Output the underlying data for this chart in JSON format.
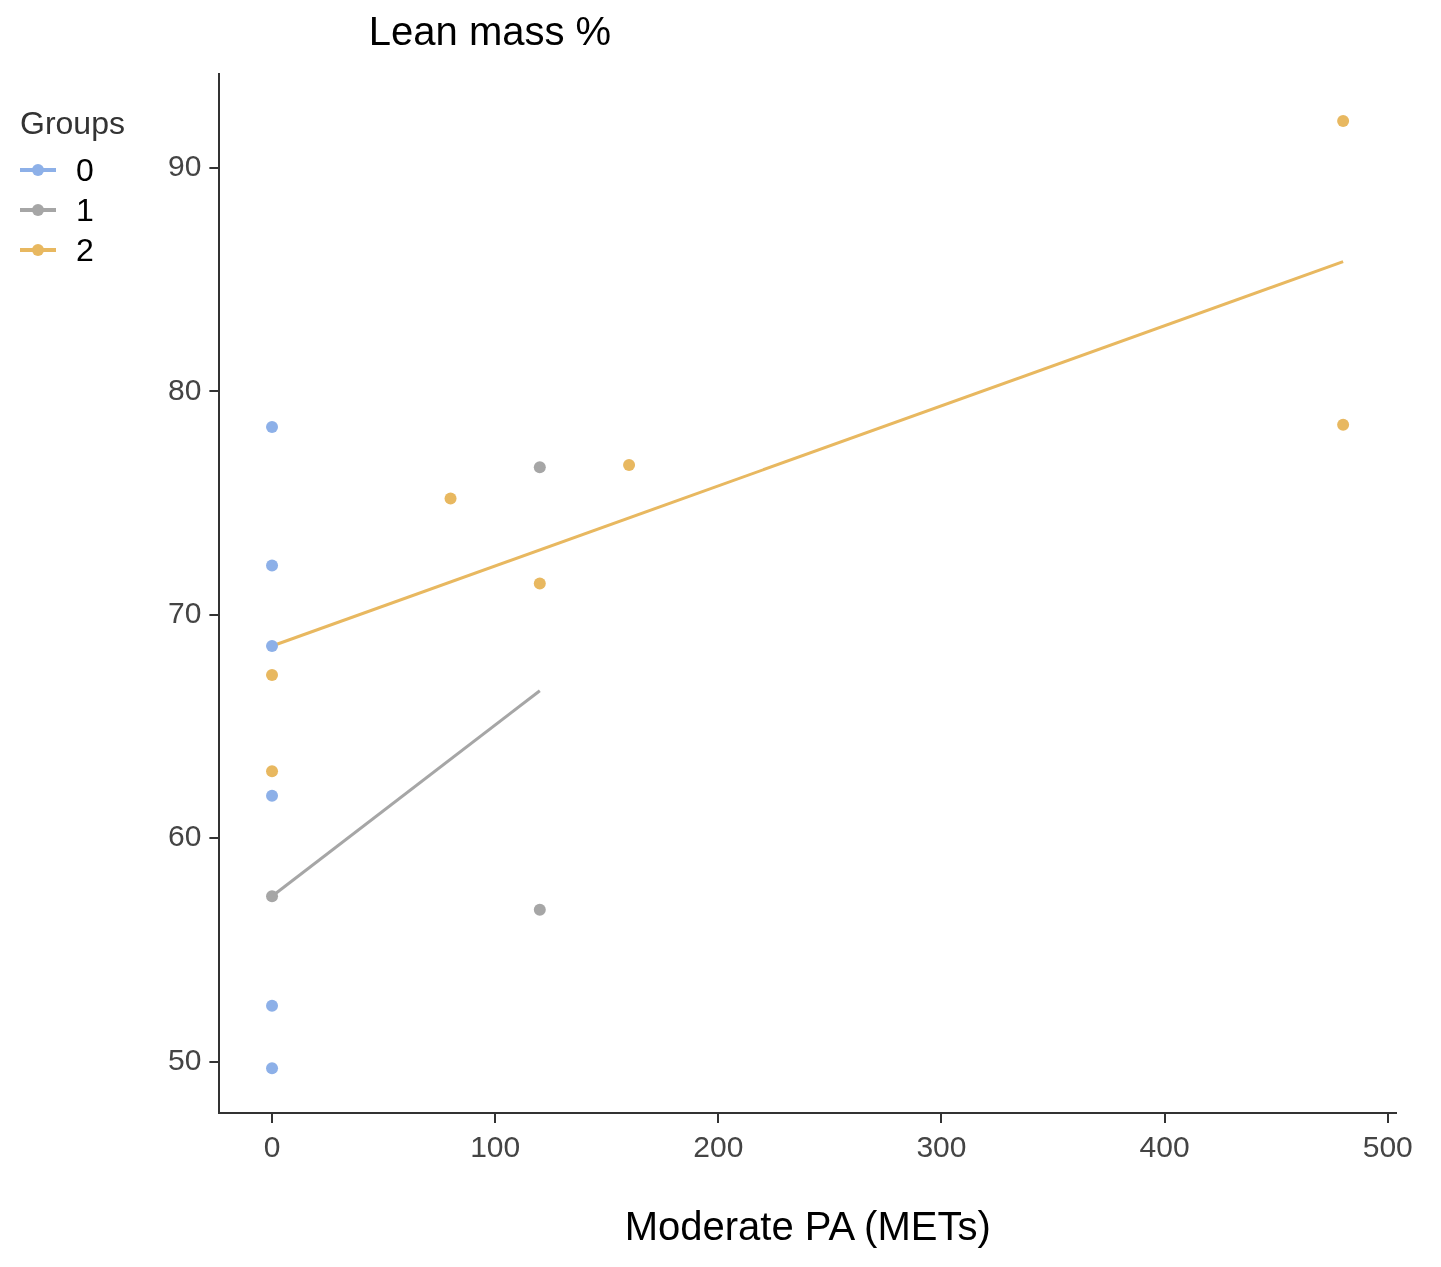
{
  "chart_data": {
    "type": "scatter",
    "title": "Lean mass %",
    "xlabel": "Moderate PA (METs)",
    "legend_title": "Groups",
    "legend": "top left",
    "grid": false,
    "marker": "circle",
    "xlim": [
      -23.6,
      503.7
    ],
    "xticks": [
      0,
      100,
      200,
      300,
      400,
      500
    ],
    "ylim": [
      47.7,
      94.2
    ],
    "yticks": [
      50,
      60,
      70,
      80,
      90
    ],
    "series": [
      {
        "name": "0",
        "color": "#8db0e8",
        "x": [
          0,
          0,
          0,
          0,
          0,
          0
        ],
        "values": [
          78.4,
          72.2,
          68.6,
          61.9,
          52.5,
          49.7
        ]
      },
      {
        "name": "1",
        "color": "#a6a6a6",
        "x": [
          0,
          120,
          120
        ],
        "values": [
          57.4,
          76.6,
          56.8
        ]
      },
      {
        "name": "2",
        "color": "#e8b860",
        "x": [
          0,
          0,
          80,
          120,
          160,
          480,
          480
        ],
        "values": [
          67.3,
          63.0,
          75.2,
          71.4,
          76.7,
          92.1,
          78.5
        ]
      },
      {
        "type": "line",
        "marker": "none",
        "color": "#a6a6a6",
        "x": [
          0,
          120
        ],
        "values": [
          57.4,
          66.6
        ]
      },
      {
        "type": "line",
        "marker": "none",
        "color": "#e8b860",
        "x": [
          0,
          480
        ],
        "values": [
          68.6,
          85.8
        ]
      }
    ]
  }
}
